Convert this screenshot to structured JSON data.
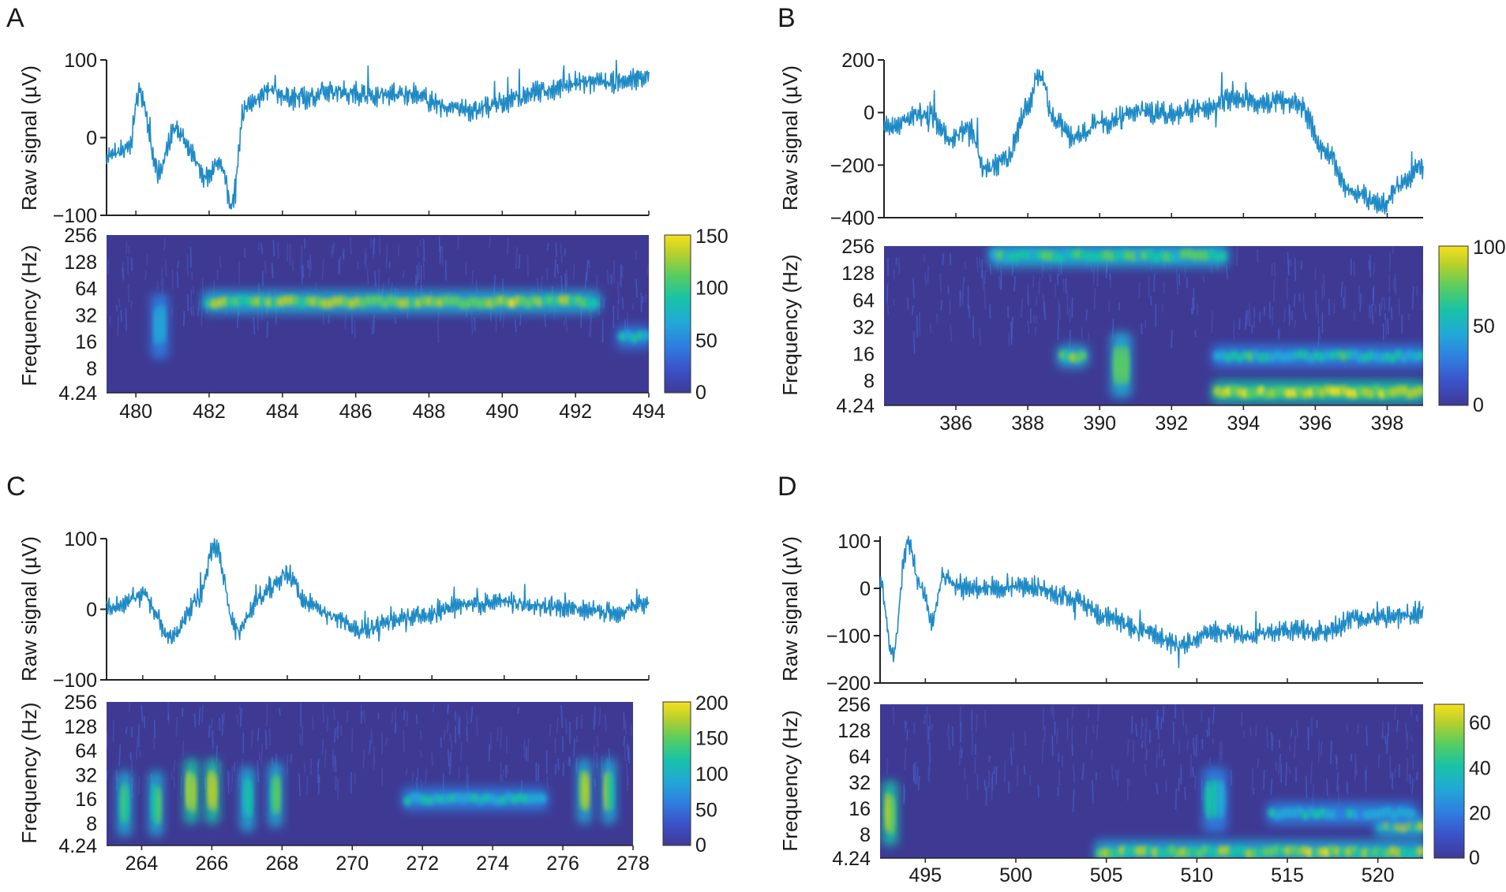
{
  "figure_description_visible": false,
  "colorscale": [
    "#3f3a96",
    "#3b52c9",
    "#2f7fe0",
    "#21a9d6",
    "#19c3a6",
    "#5ccd5e",
    "#b6cf2c",
    "#f5e01e"
  ],
  "trace_color": "#1f8ac6",
  "chart_data": [
    {
      "panel": "A",
      "type": "line",
      "top": {
        "ylabel": "Raw signal (µV)",
        "yticks": [
          "100",
          "0",
          "−100"
        ],
        "ytick_values": [
          100,
          0,
          -100
        ],
        "ylim": [
          -100,
          100
        ],
        "xlim": [
          479.2,
          494
        ],
        "series": {
          "name": "raw",
          "x": [
            479.2,
            479.8,
            480.1,
            480.6,
            481.1,
            481.5,
            481.9,
            482.3,
            482.6,
            483.0,
            483.6,
            484.5,
            485.5,
            486.5,
            487.5,
            488.5,
            489.2,
            490.0,
            491.0,
            492.0,
            493.0,
            494.0
          ],
          "y": [
            -25,
            -15,
            60,
            -45,
            15,
            -20,
            -50,
            -30,
            -85,
            40,
            60,
            50,
            60,
            55,
            55,
            40,
            35,
            45,
            60,
            70,
            70,
            80
          ]
        }
      },
      "bottom": {
        "type": "heatmap",
        "ylabel": "Frequency (Hz)",
        "yticks": [
          "256",
          "128",
          "64",
          "32",
          "16",
          "8",
          "4.24"
        ],
        "xticks": [
          "480",
          "482",
          "484",
          "486",
          "488",
          "490",
          "492",
          "494"
        ],
        "xtick_values": [
          480,
          482,
          484,
          486,
          488,
          490,
          492,
          494
        ],
        "xlim": [
          479.2,
          494
        ],
        "colorbar": {
          "ticks": [
            "150",
            "100",
            "50",
            "0"
          ],
          "tick_values": [
            150,
            100,
            50,
            0
          ],
          "max": 150
        },
        "features": [
          {
            "x_start": 481.9,
            "x_end": 492.6,
            "freq_hz": 45,
            "intensity": 0.85
          },
          {
            "x_start": 480.5,
            "x_end": 480.8,
            "freq_hz": 24,
            "intensity": 0.45
          },
          {
            "x_start": 493.2,
            "x_end": 494.0,
            "freq_hz": 18,
            "intensity": 0.55
          }
        ]
      }
    },
    {
      "panel": "B",
      "type": "line",
      "top": {
        "ylabel": "Raw signal (µV)",
        "yticks": [
          "200",
          "0",
          "−200",
          "−400"
        ],
        "ytick_values": [
          200,
          0,
          -200,
          -400
        ],
        "ylim": [
          -400,
          200
        ],
        "xlim": [
          384,
          399
        ],
        "series": {
          "name": "raw",
          "x": [
            384.0,
            385.2,
            385.8,
            386.4,
            386.8,
            387.4,
            388.0,
            388.3,
            388.8,
            389.3,
            390.0,
            391.0,
            392.0,
            393.0,
            393.5,
            394.5,
            395.5,
            396.3,
            397.0,
            397.8,
            398.5,
            399.0
          ],
          "y": [
            -60,
            0,
            -100,
            -60,
            -220,
            -180,
            20,
            140,
            -30,
            -100,
            -40,
            0,
            0,
            10,
            50,
            40,
            40,
            -150,
            -300,
            -350,
            -260,
            -200
          ]
        }
      },
      "bottom": {
        "type": "heatmap",
        "ylabel": "Frequency (Hz)",
        "yticks": [
          "256",
          "128",
          "64",
          "32",
          "16",
          "8",
          "4.24"
        ],
        "xticks": [
          "386",
          "388",
          "390",
          "392",
          "394",
          "396",
          "398"
        ],
        "xtick_values": [
          386,
          388,
          390,
          392,
          394,
          396,
          398
        ],
        "xlim": [
          384,
          399
        ],
        "colorbar": {
          "ticks": [
            "100",
            "50",
            "0"
          ],
          "tick_values": [
            100,
            50,
            0
          ],
          "max": 100
        },
        "features": [
          {
            "x_start": 387.0,
            "x_end": 393.5,
            "freq_hz": 200,
            "intensity": 0.7
          },
          {
            "x_start": 388.9,
            "x_end": 389.6,
            "freq_hz": 15,
            "intensity": 0.9
          },
          {
            "x_start": 390.4,
            "x_end": 390.8,
            "freq_hz": 12,
            "intensity": 0.7
          },
          {
            "x_start": 393.2,
            "x_end": 399.0,
            "freq_hz": 6,
            "intensity": 1.0
          },
          {
            "x_start": 393.2,
            "x_end": 399.0,
            "freq_hz": 15,
            "intensity": 0.6
          }
        ]
      }
    },
    {
      "panel": "C",
      "type": "line",
      "top": {
        "ylabel": "Raw signal (µV)",
        "yticks": [
          "100",
          "0",
          "−100"
        ],
        "ytick_values": [
          100,
          0,
          -100
        ],
        "ylim": [
          -100,
          100
        ],
        "xlim": [
          263,
          278
        ],
        "series": {
          "name": "raw",
          "x": [
            263.0,
            264.0,
            264.8,
            265.5,
            266.0,
            266.6,
            267.3,
            268.0,
            268.5,
            269.3,
            270.0,
            271.0,
            272.0,
            273.0,
            274.0,
            275.0,
            276.0,
            277.0,
            278.0
          ],
          "y": [
            0,
            20,
            -40,
            10,
            90,
            -30,
            20,
            50,
            10,
            -10,
            -30,
            -15,
            -5,
            5,
            10,
            5,
            0,
            -5,
            10
          ]
        }
      },
      "bottom": {
        "type": "heatmap",
        "ylabel": "Frequency (Hz)",
        "yticks": [
          "256",
          "128",
          "64",
          "32",
          "16",
          "8",
          "4.24"
        ],
        "xticks": [
          "264",
          "266",
          "268",
          "270",
          "272",
          "274",
          "276",
          "278"
        ],
        "xtick_values": [
          264,
          266,
          268,
          270,
          272,
          274,
          276,
          278
        ],
        "xlim": [
          263,
          278
        ],
        "colorbar": {
          "ticks": [
            "200",
            "150",
            "100",
            "50",
            "0"
          ],
          "tick_values": [
            200,
            150,
            100,
            50,
            0
          ],
          "max": 200
        },
        "features": [
          {
            "x_start": 263.4,
            "x_end": 263.6,
            "freq_hz": 14,
            "intensity": 0.7
          },
          {
            "x_start": 264.3,
            "x_end": 264.5,
            "freq_hz": 14,
            "intensity": 0.75
          },
          {
            "x_start": 265.3,
            "x_end": 265.5,
            "freq_hz": 20,
            "intensity": 1.0
          },
          {
            "x_start": 265.9,
            "x_end": 266.1,
            "freq_hz": 20,
            "intensity": 1.0
          },
          {
            "x_start": 266.9,
            "x_end": 267.1,
            "freq_hz": 16,
            "intensity": 0.7
          },
          {
            "x_start": 267.7,
            "x_end": 267.9,
            "freq_hz": 18,
            "intensity": 0.9
          },
          {
            "x_start": 271.5,
            "x_end": 275.5,
            "freq_hz": 16,
            "intensity": 0.55
          },
          {
            "x_start": 276.5,
            "x_end": 276.7,
            "freq_hz": 20,
            "intensity": 0.9
          },
          {
            "x_start": 277.2,
            "x_end": 277.4,
            "freq_hz": 20,
            "intensity": 0.8
          }
        ]
      }
    },
    {
      "panel": "D",
      "type": "line",
      "top": {
        "ylabel": "Raw signal (µV)",
        "yticks": [
          "100",
          "0",
          "−100",
          "−200"
        ],
        "ytick_values": [
          100,
          0,
          -100,
          -200
        ],
        "ylim": [
          -200,
          110
        ],
        "xlim": [
          492.5,
          522.5
        ],
        "series": {
          "name": "raw",
          "x": [
            492.5,
            493.2,
            494.0,
            494.8,
            495.4,
            496.0,
            496.6,
            497.5,
            499.0,
            501.0,
            503.0,
            505.0,
            507.0,
            509.0,
            511.0,
            513.0,
            515.0,
            517.0,
            519.0,
            521.0,
            522.5
          ],
          "y": [
            10,
            -140,
            100,
            0,
            -70,
            30,
            10,
            0,
            0,
            0,
            -20,
            -60,
            -90,
            -120,
            -90,
            -100,
            -90,
            -90,
            -60,
            -60,
            -50
          ]
        }
      },
      "bottom": {
        "type": "heatmap",
        "ylabel": "Frequency (Hz)",
        "yticks": [
          "256",
          "128",
          "64",
          "32",
          "16",
          "8",
          "4.24"
        ],
        "xticks": [
          "495",
          "500",
          "505",
          "510",
          "515",
          "520"
        ],
        "xtick_values": [
          495,
          500,
          505,
          510,
          515,
          520
        ],
        "xlim": [
          492.5,
          522.5
        ],
        "colorbar": {
          "ticks": [
            "60",
            "40",
            "20",
            "0"
          ],
          "tick_values": [
            60,
            40,
            20,
            0
          ],
          "max": 68
        },
        "features": [
          {
            "x_start": 492.8,
            "x_end": 493.3,
            "freq_hz": 14,
            "intensity": 0.95
          },
          {
            "x_start": 504.5,
            "x_end": 522.5,
            "freq_hz": 5,
            "intensity": 0.85
          },
          {
            "x_start": 510.5,
            "x_end": 511.5,
            "freq_hz": 20,
            "intensity": 0.6
          },
          {
            "x_start": 520.0,
            "x_end": 522.5,
            "freq_hz": 10,
            "intensity": 0.9
          },
          {
            "x_start": 514.0,
            "x_end": 522.0,
            "freq_hz": 14,
            "intensity": 0.5
          }
        ]
      }
    }
  ]
}
